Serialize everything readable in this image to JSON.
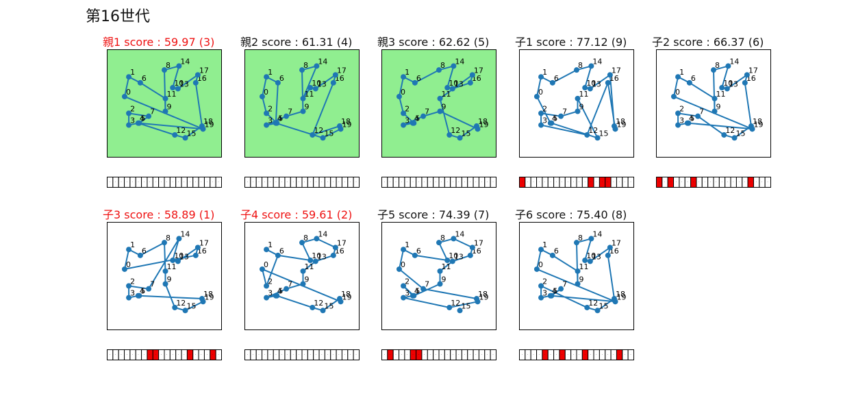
{
  "generation_title": "第16世代",
  "colors": {
    "edge": "#1f77b4",
    "elite_bg": "#90ee90",
    "normal_bg": "#ffffff",
    "highlight": "#ee0000"
  },
  "chart_data": {
    "type": "scatter",
    "xlim": [
      -0.05,
      1.05
    ],
    "ylim": [
      -0.05,
      1.05
    ],
    "grid": false,
    "nodes": [
      {
        "id": "0",
        "x": 0.12,
        "y": 0.57
      },
      {
        "id": "1",
        "x": 0.16,
        "y": 0.77
      },
      {
        "id": "2",
        "x": 0.16,
        "y": 0.4
      },
      {
        "id": "3",
        "x": 0.16,
        "y": 0.28
      },
      {
        "id": "4",
        "x": 0.25,
        "y": 0.3
      },
      {
        "id": "5",
        "x": 0.26,
        "y": 0.3
      },
      {
        "id": "6",
        "x": 0.27,
        "y": 0.71
      },
      {
        "id": "7",
        "x": 0.35,
        "y": 0.37
      },
      {
        "id": "8",
        "x": 0.5,
        "y": 0.84
      },
      {
        "id": "9",
        "x": 0.51,
        "y": 0.42
      },
      {
        "id": "10",
        "x": 0.58,
        "y": 0.66
      },
      {
        "id": "11",
        "x": 0.51,
        "y": 0.55
      },
      {
        "id": "12",
        "x": 0.6,
        "y": 0.18
      },
      {
        "id": "13",
        "x": 0.63,
        "y": 0.65
      },
      {
        "id": "14",
        "x": 0.64,
        "y": 0.88
      },
      {
        "id": "15",
        "x": 0.7,
        "y": 0.15
      },
      {
        "id": "16",
        "x": 0.8,
        "y": 0.71
      },
      {
        "id": "17",
        "x": 0.82,
        "y": 0.79
      },
      {
        "id": "18",
        "x": 0.86,
        "y": 0.27
      },
      {
        "id": "19",
        "x": 0.87,
        "y": 0.24
      }
    ],
    "panels": [
      {
        "title": "親1 score : 59.97 (3)",
        "best": true,
        "elite": true,
        "tour": [
          0,
          1,
          6,
          11,
          9,
          8,
          14,
          10,
          13,
          17,
          16,
          18,
          15,
          12,
          4,
          3,
          2,
          7,
          5,
          19,
          0
        ],
        "genes": []
      },
      {
        "title": "親2 score : 61.31 (4)",
        "best": false,
        "elite": true,
        "tour": [
          0,
          2,
          5,
          3,
          7,
          9,
          8,
          14,
          11,
          10,
          13,
          17,
          16,
          12,
          18,
          19,
          15,
          4,
          6,
          1,
          0
        ],
        "genes": []
      },
      {
        "title": "親3 score : 62.62 (5)",
        "best": false,
        "elite": true,
        "tour": [
          0,
          1,
          6,
          8,
          14,
          10,
          13,
          16,
          17,
          11,
          12,
          15,
          18,
          19,
          9,
          7,
          3,
          4,
          5,
          2,
          0
        ],
        "genes": []
      },
      {
        "title": "子1 score : 77.12 (9)",
        "best": false,
        "elite": false,
        "tour": [
          0,
          1,
          6,
          8,
          14,
          10,
          13,
          17,
          18,
          19,
          16,
          12,
          3,
          2,
          7,
          9,
          11,
          15,
          5,
          4,
          0
        ],
        "genes": [
          0,
          12,
          14,
          15
        ]
      },
      {
        "title": "子2 score : 66.37 (6)",
        "best": false,
        "elite": false,
        "tour": [
          0,
          1,
          6,
          11,
          9,
          8,
          14,
          10,
          13,
          17,
          16,
          18,
          15,
          12,
          7,
          2,
          3,
          4,
          5,
          19,
          0
        ],
        "genes": [
          0,
          2,
          6,
          16
        ]
      },
      {
        "title": "子3 score : 58.89 (1)",
        "best": true,
        "elite": false,
        "tour": [
          0,
          1,
          6,
          8,
          11,
          9,
          12,
          15,
          19,
          18,
          5,
          4,
          3,
          2,
          7,
          14,
          10,
          13,
          17,
          16,
          0
        ],
        "genes": [
          7,
          8,
          14,
          18
        ]
      },
      {
        "title": "子4 score : 59.61 (2)",
        "best": true,
        "elite": false,
        "tour": [
          0,
          2,
          6,
          1,
          6,
          10,
          8,
          14,
          17,
          16,
          13,
          11,
          9,
          7,
          3,
          4,
          5,
          12,
          15,
          18,
          19,
          0
        ],
        "genes": []
      },
      {
        "title": "子5 score : 74.39 (7)",
        "best": false,
        "elite": false,
        "tour": [
          0,
          1,
          6,
          10,
          8,
          14,
          17,
          16,
          13,
          11,
          9,
          5,
          2,
          4,
          3,
          12,
          19,
          18,
          7,
          0
        ],
        "genes": [
          1,
          5,
          6
        ]
      },
      {
        "title": "子6 score : 75.40 (8)",
        "best": false,
        "elite": false,
        "tour": [
          0,
          1,
          6,
          11,
          9,
          8,
          14,
          10,
          13,
          17,
          16,
          18,
          15,
          12,
          2,
          3,
          4,
          7,
          5,
          19,
          0
        ],
        "genes": [
          4,
          7,
          11,
          17
        ]
      }
    ]
  }
}
